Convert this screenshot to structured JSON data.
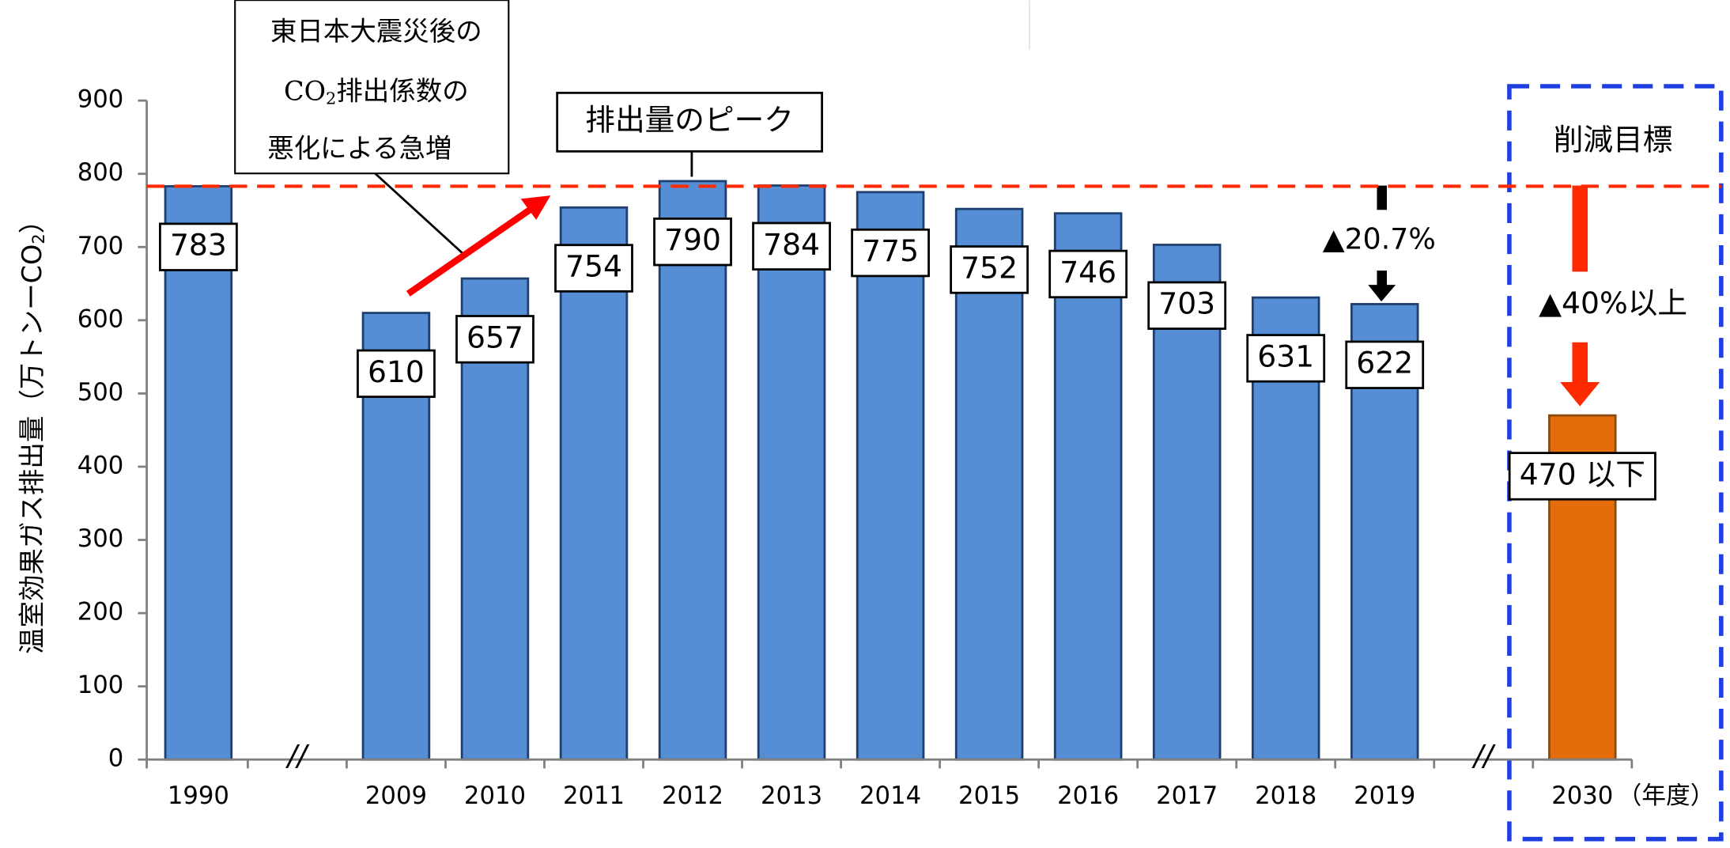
{
  "chart_data": {
    "type": "bar",
    "ylabel": [
      "温室効果ガス排出量（万トンーCO",
      "2",
      "）"
    ],
    "xlabel": "（年度）",
    "categories": [
      "1990",
      null,
      "2009",
      "2010",
      "2011",
      "2012",
      "2013",
      "2014",
      "2015",
      "2016",
      "2017",
      "2018",
      "2019",
      null,
      "2030"
    ],
    "values": [
      783,
      null,
      610,
      657,
      754,
      790,
      784,
      775,
      752,
      746,
      703,
      631,
      622,
      null,
      470
    ],
    "value_labels": [
      "783",
      null,
      "610",
      "657",
      "754",
      "790",
      "784",
      "775",
      "752",
      "746",
      "703",
      "631",
      "622",
      null,
      "470 以下"
    ],
    "colors": [
      "#558ed5",
      null,
      "#558ed5",
      "#558ed5",
      "#558ed5",
      "#558ed5",
      "#558ed5",
      "#558ed5",
      "#558ed5",
      "#558ed5",
      "#558ed5",
      "#558ed5",
      "#558ed5",
      null,
      "#e46c0a"
    ],
    "ylim": [
      0,
      900
    ],
    "yticks": [
      0,
      100,
      200,
      300,
      400,
      500,
      600,
      700,
      800,
      900
    ],
    "reference_line": 783,
    "annotations": {
      "quake": [
        "東日本大震災後の",
        [
          "CO",
          "2",
          "排出係数の"
        ],
        "悪化による急増"
      ],
      "peak": "排出量のピーク",
      "reduction_2019": "▲20.7%",
      "target_title": "削減目標",
      "target_reduction": "▲40%以上"
    }
  }
}
